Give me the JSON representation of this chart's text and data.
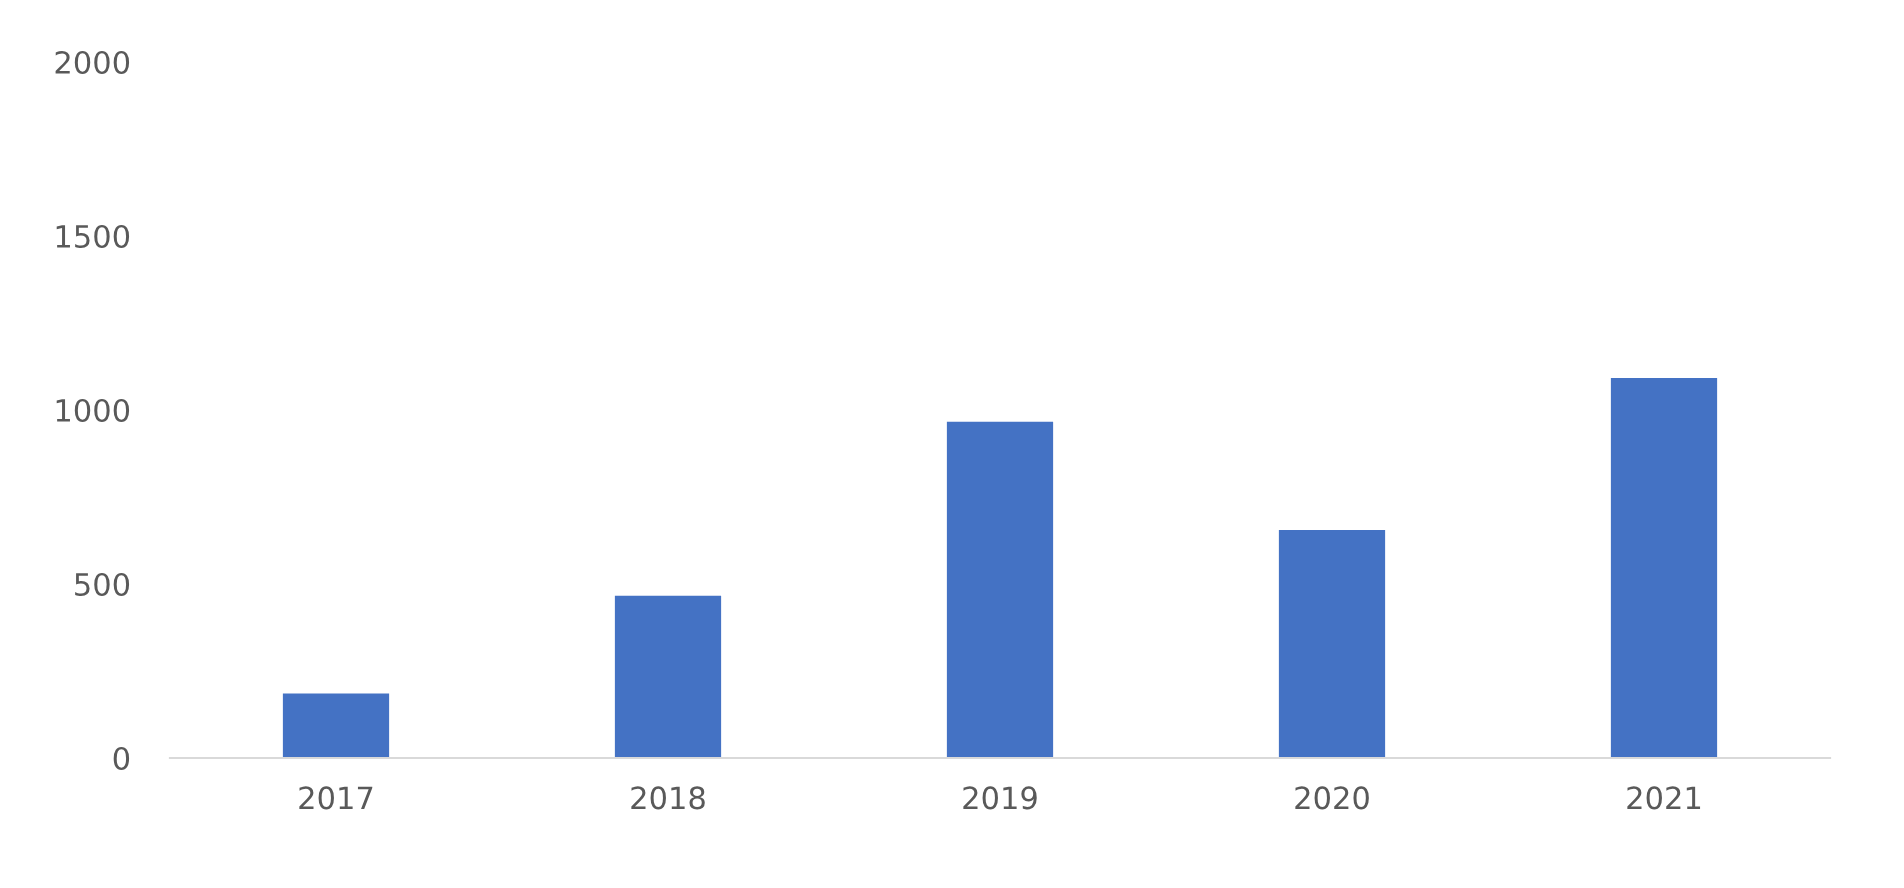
{
  "chart_data": {
    "type": "bar",
    "categories": [
      "2017",
      "2018",
      "2019",
      "2020",
      "2021"
    ],
    "values": [
      185,
      466,
      966,
      655,
      1092
    ],
    "color": "#4472c4",
    "ylim": [
      0,
      2000
    ],
    "yticks": [
      0,
      500,
      1000,
      1500,
      2000
    ],
    "grid": false
  }
}
